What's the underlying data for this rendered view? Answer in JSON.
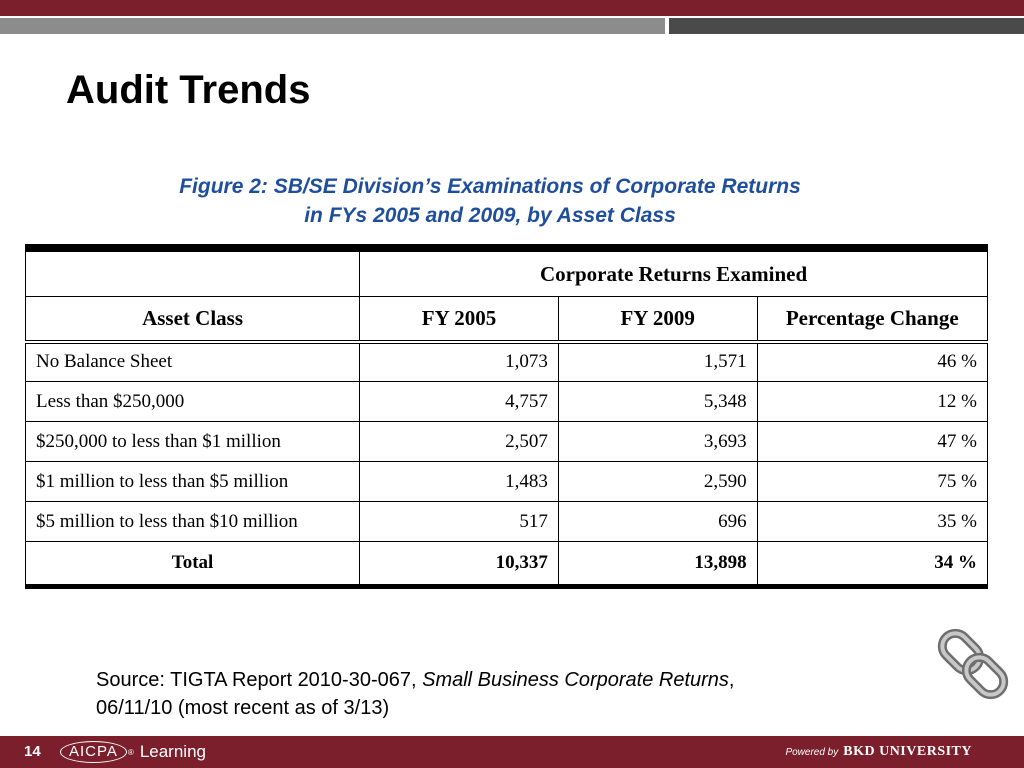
{
  "slide": {
    "title": "Audit Trends",
    "page_number": "14"
  },
  "figure": {
    "caption_line1": "Figure 2:  SB/SE Division’s Examinations of Corporate Returns",
    "caption_line2": "in FYs 2005 and 2009, by Asset Class"
  },
  "table": {
    "group_header": "Corporate Returns Examined",
    "columns": [
      "Asset Class",
      "FY 2005",
      "FY 2009",
      "Percentage Change"
    ],
    "rows": [
      [
        "No Balance Sheet",
        "1,073",
        "1,571",
        "46 %"
      ],
      [
        "Less than $250,000",
        "4,757",
        "5,348",
        "12 %"
      ],
      [
        "$250,000 to less than $1 million",
        "2,507",
        "3,693",
        "47 %"
      ],
      [
        "$1 million to less than $5 million",
        "1,483",
        "2,590",
        "75 %"
      ],
      [
        "$5 million to less than $10 million",
        "517",
        "696",
        "35 %"
      ]
    ],
    "total": [
      "Total",
      "10,337",
      "13,898",
      "34 %"
    ]
  },
  "source": {
    "prefix": "Source: TIGTA Report 2010-30-067, ",
    "report_title": "Small Business Corporate Returns",
    "suffix": ",",
    "line2": "06/11/10 (most recent as of 3/13)"
  },
  "footer": {
    "aicpa": "AICPA",
    "registered": "®",
    "learning": "Learning",
    "powered_by": "Powered by",
    "bkd_university": "BKD UNIVERSITY"
  },
  "icons": {
    "link": "chain-link-icon"
  },
  "colors": {
    "accent_red": "#7a1f2b",
    "caption_blue": "#1f4e9c"
  }
}
